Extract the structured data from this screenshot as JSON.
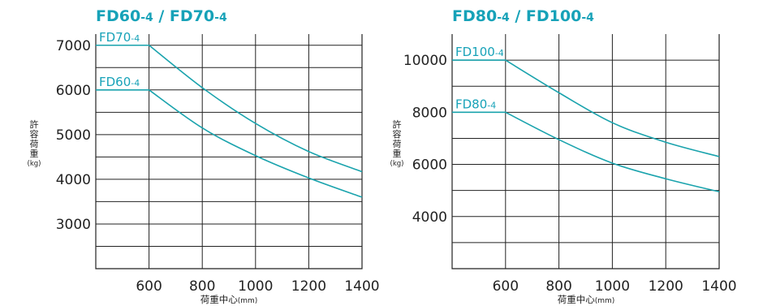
{
  "chart_data": [
    {
      "type": "line",
      "title_parts": [
        "FD60",
        "-4",
        "  / FD70",
        "-4"
      ],
      "ylabel_chars": [
        "許",
        "容",
        "荷",
        "重"
      ],
      "ylabel_unit": "(kg)",
      "xlabel": "荷重中心",
      "xlabel_unit": "(mm)",
      "x_ticks": [
        "600",
        "800",
        "1000",
        "1200",
        "1400"
      ],
      "y_ticks": [
        "3000",
        "4000",
        "5000",
        "6000",
        "7000"
      ],
      "xlim": [
        400,
        1400
      ],
      "ylim": [
        2000,
        7250
      ],
      "y_grid_step": 500,
      "x_grid_step": 200,
      "series": [
        {
          "name_parts": [
            "FD70",
            "-4"
          ],
          "x": [
            400,
            600,
            800,
            1000,
            1200,
            1400
          ],
          "y": [
            7000,
            7000,
            6050,
            5250,
            4620,
            4170
          ]
        },
        {
          "name_parts": [
            "FD60",
            "-4"
          ],
          "x": [
            400,
            600,
            800,
            1000,
            1200,
            1400
          ],
          "y": [
            6000,
            6000,
            5150,
            4530,
            4030,
            3600
          ]
        }
      ],
      "line_color": "#1aa3ad",
      "title_color": "#17a2b8"
    },
    {
      "type": "line",
      "title_parts": [
        "FD80",
        "-4",
        " / FD100",
        "-4"
      ],
      "ylabel_chars": [
        "許",
        "容",
        "荷",
        "重"
      ],
      "ylabel_unit": "(kg)",
      "xlabel": "荷重中心",
      "xlabel_unit": "(mm)",
      "x_ticks": [
        "600",
        "800",
        "1000",
        "1200",
        "1400"
      ],
      "y_ticks": [
        "4000",
        "6000",
        "8000",
        "10000"
      ],
      "xlim": [
        400,
        1400
      ],
      "ylim": [
        2000,
        11000
      ],
      "y_grid_step": 1000,
      "x_grid_step": 200,
      "series": [
        {
          "name_parts": [
            "FD100",
            "-4"
          ],
          "x": [
            400,
            600,
            800,
            1000,
            1200,
            1400
          ],
          "y": [
            10000,
            10000,
            8750,
            7600,
            6850,
            6300
          ]
        },
        {
          "name_parts": [
            "FD80",
            "-4"
          ],
          "x": [
            400,
            600,
            800,
            1000,
            1200,
            1400
          ],
          "y": [
            8000,
            8000,
            6950,
            6050,
            5450,
            4950
          ]
        }
      ],
      "line_color": "#1aa3ad",
      "title_color": "#17a2b8"
    }
  ]
}
